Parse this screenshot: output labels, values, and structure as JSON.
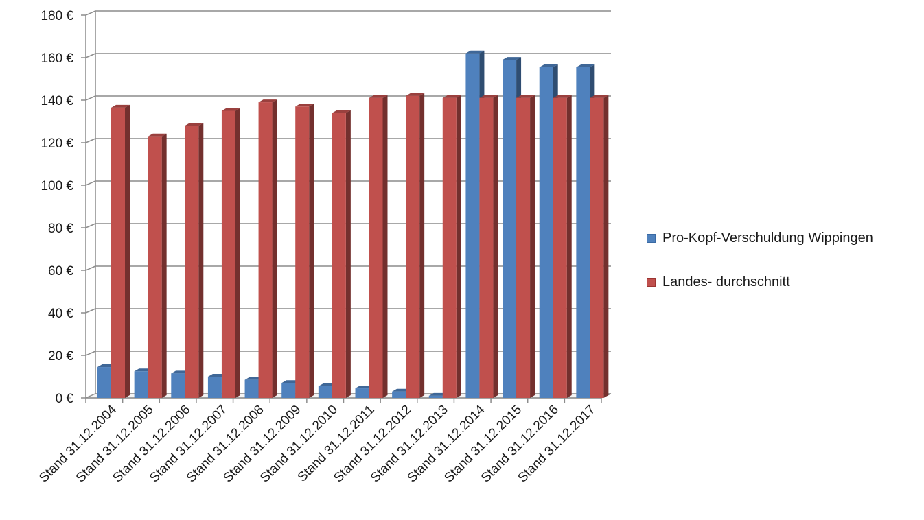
{
  "chart_data": {
    "type": "bar",
    "categories": [
      "Stand 31.12.2004",
      "Stand 31.12.2005",
      "Stand 31.12.2006",
      "Stand 31.12.2007",
      "Stand 31.12.2008",
      "Stand 31.12.2009",
      "Stand 31.12.2010",
      "Stand 31.12.2011",
      "Stand 31.12.2012",
      "Stand 31.12.2013",
      "Stand 31.12.2014",
      "Stand 31.12.2015",
      "Stand 31.12.2016",
      "Stand 31.12.2017"
    ],
    "series": [
      {
        "name": "Pro-Kopf-Verschuldung Wippingen",
        "color": "#4f81bd",
        "values": [
          14.5,
          12.5,
          11.5,
          10,
          8.5,
          7,
          5.5,
          4.5,
          3,
          1,
          162,
          159,
          155.5,
          155.5
        ]
      },
      {
        "name": "Landes- durchschnitt",
        "color": "#c0504d",
        "values": [
          136.5,
          123,
          128,
          135,
          139,
          137,
          134,
          141,
          142,
          141,
          141,
          141,
          141,
          141
        ]
      }
    ],
    "yticks": [
      "0 €",
      "20 €",
      "40 €",
      "60 €",
      "80 €",
      "100 €",
      "120 €",
      "140 €",
      "160 €",
      "180 €"
    ],
    "ylim": [
      0,
      180
    ],
    "grid": true,
    "legend_position": "right",
    "style": "3d-clustered-column"
  }
}
